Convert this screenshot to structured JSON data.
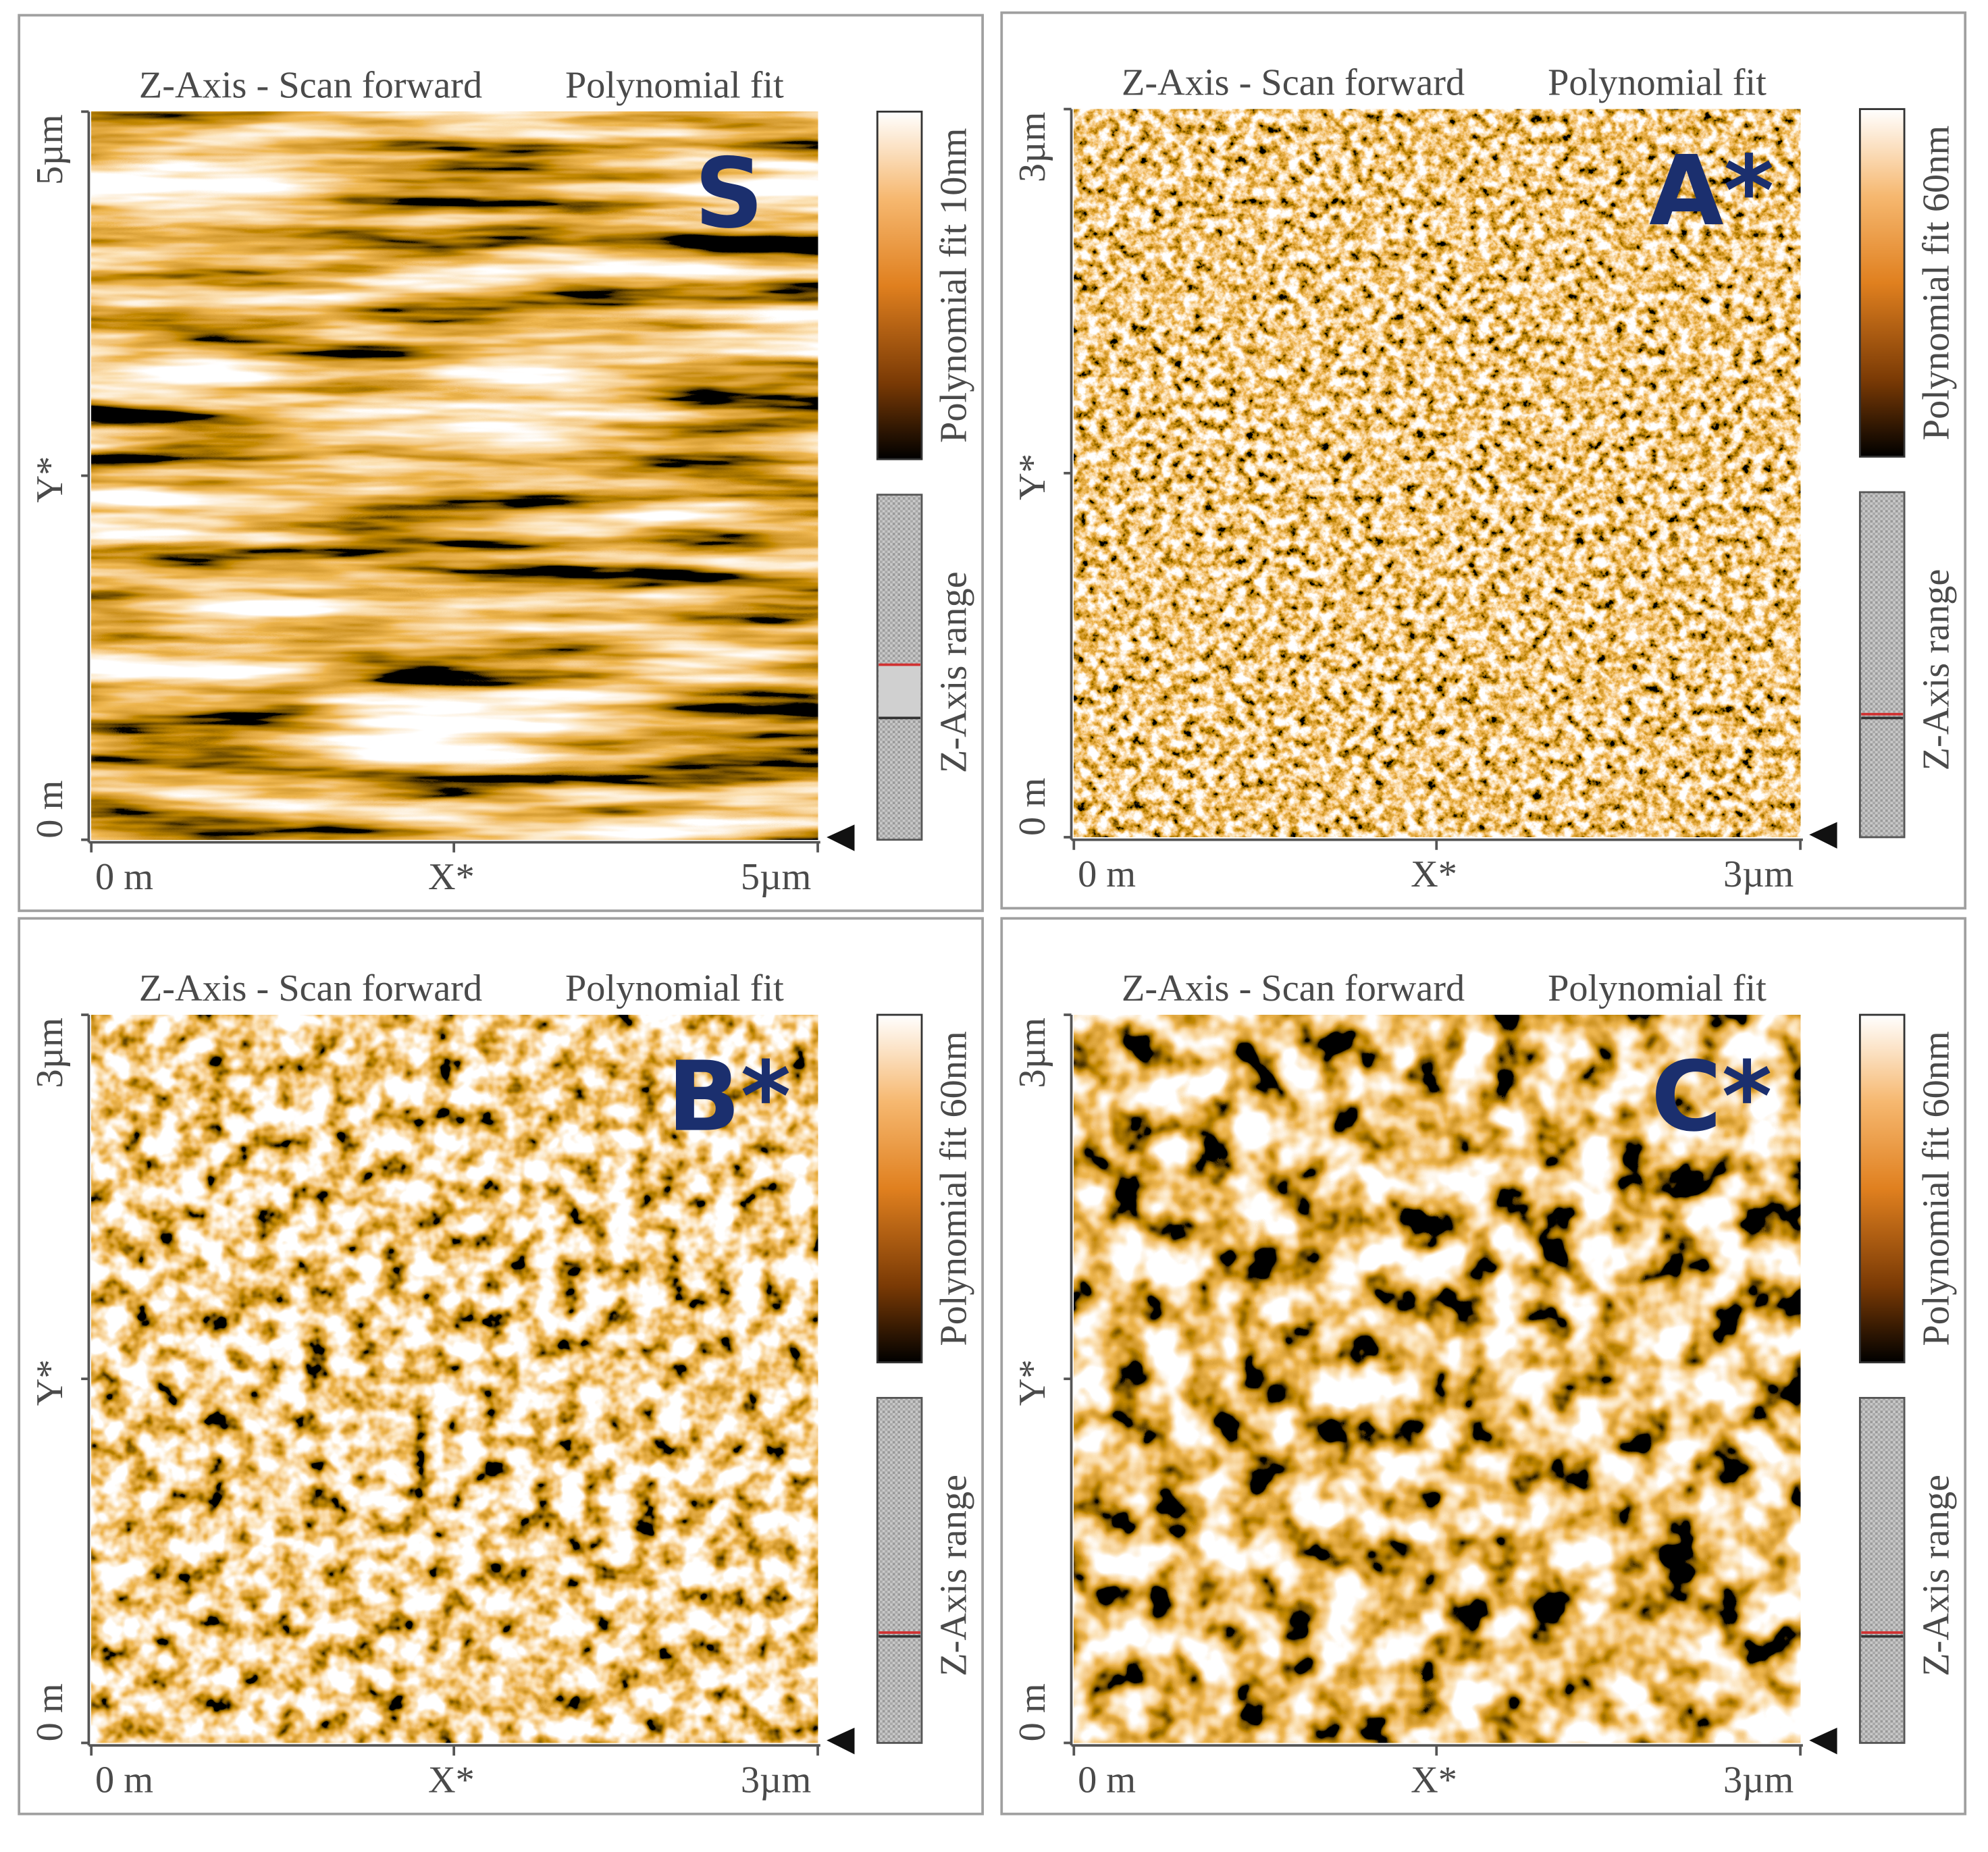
{
  "panels": [
    {
      "title": "Z-Axis - Scan forward",
      "fit": "Polynomial fit",
      "label": "S",
      "y_axis": {
        "top": "5µm",
        "middle": "Y*",
        "bottom": "0 m"
      },
      "x_axis": {
        "left": "0 m",
        "middle": "X*",
        "right": "5µm"
      },
      "colorbar_label": "Polynomial fit 10nm",
      "range_label": "Z-Axis range"
    },
    {
      "title": "Z-Axis - Scan forward",
      "fit": "Polynomial fit",
      "label": "A*",
      "y_axis": {
        "top": "3µm",
        "middle": "Y*",
        "bottom": "0 m"
      },
      "x_axis": {
        "left": "0 m",
        "middle": "X*",
        "right": "3µm"
      },
      "colorbar_label": "Polynomial fit 60nm",
      "range_label": "Z-Axis range"
    },
    {
      "title": "Z-Axis - Scan forward",
      "fit": "Polynomial fit",
      "label": "B*",
      "y_axis": {
        "top": "3µm",
        "middle": "Y*",
        "bottom": "0 m"
      },
      "x_axis": {
        "left": "0 m",
        "middle": "X*",
        "right": "3µm"
      },
      "colorbar_label": "Polynomial fit 60nm",
      "range_label": "Z-Axis range"
    },
    {
      "title": "Z-Axis - Scan forward",
      "fit": "Polynomial fit",
      "label": "C*",
      "y_axis": {
        "top": "3µm",
        "middle": "Y*",
        "bottom": "0 m"
      },
      "x_axis": {
        "left": "0 m",
        "middle": "X*",
        "right": "3µm"
      },
      "colorbar_label": "Polynomial fit 60nm",
      "range_label": "Z-Axis range"
    }
  ]
}
